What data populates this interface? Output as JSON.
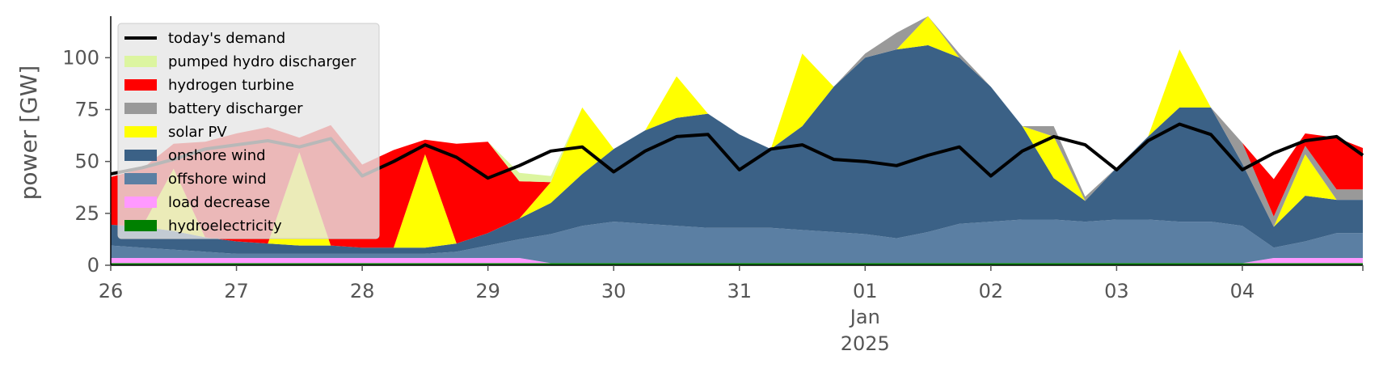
{
  "chart_data": {
    "type": "area",
    "ylabel": "power [GW]",
    "ylim": [
      0,
      120
    ],
    "xlim": [
      "2024-12-26T00:00",
      "2025-01-04T23:00"
    ],
    "yticks": [
      0,
      25,
      50,
      75,
      100
    ],
    "ytick_labels": [
      "0",
      "25",
      "50",
      "75",
      "100"
    ],
    "xtick_labels": [
      "26",
      "27",
      "28",
      "29",
      "30",
      "31",
      "01",
      "02",
      "03",
      "04"
    ],
    "xtick_sublabel": [
      "Jan",
      "2025"
    ],
    "legend_position": "upper-left",
    "legend": [
      "today's demand",
      "pumped hydro discharger",
      "hydrogen turbine",
      "battery discharger",
      "solar PV",
      "onshore wind",
      "offshore wind",
      "load decrease",
      "hydroelectricity"
    ],
    "x": [
      "2024-12-26T00:00",
      "2024-12-26T06:00",
      "2024-12-26T12:00",
      "2024-12-26T18:00",
      "2024-12-27T00:00",
      "2024-12-27T06:00",
      "2024-12-27T12:00",
      "2024-12-27T18:00",
      "2024-12-28T00:00",
      "2024-12-28T06:00",
      "2024-12-28T12:00",
      "2024-12-28T18:00",
      "2024-12-29T00:00",
      "2024-12-29T06:00",
      "2024-12-29T12:00",
      "2024-12-29T18:00",
      "2024-12-30T00:00",
      "2024-12-30T06:00",
      "2024-12-30T12:00",
      "2024-12-30T18:00",
      "2024-12-31T00:00",
      "2024-12-31T06:00",
      "2024-12-31T12:00",
      "2024-12-31T18:00",
      "2025-01-01T00:00",
      "2025-01-01T06:00",
      "2025-01-01T12:00",
      "2025-01-01T18:00",
      "2025-01-02T00:00",
      "2025-01-02T06:00",
      "2025-01-02T12:00",
      "2025-01-02T18:00",
      "2025-01-03T00:00",
      "2025-01-03T06:00",
      "2025-01-03T12:00",
      "2025-01-03T18:00",
      "2025-01-04T00:00",
      "2025-01-04T06:00",
      "2025-01-04T12:00",
      "2025-01-04T18:00",
      "2025-01-04T23:00"
    ],
    "series": [
      {
        "name": "hydroelectricity",
        "color": "#008000",
        "values": [
          1,
          1,
          1,
          1,
          1,
          1,
          1,
          1,
          1,
          1,
          1,
          1,
          1,
          1,
          1,
          1,
          1,
          1,
          1,
          1,
          1,
          1,
          1,
          1,
          1,
          1,
          1,
          1,
          1,
          1,
          1,
          1,
          1,
          1,
          1,
          1,
          1,
          1,
          1,
          1,
          1
        ]
      },
      {
        "name": "load decrease",
        "color": "#ff99ff",
        "values": [
          2.5,
          2.5,
          2.5,
          2.5,
          2.5,
          2.5,
          2.5,
          2.5,
          2.5,
          2.5,
          2.5,
          2.5,
          2.5,
          2.5,
          0,
          0,
          0,
          0,
          0,
          0,
          0,
          0,
          0,
          0,
          0,
          0,
          0,
          0,
          0,
          0,
          0,
          0,
          0,
          0,
          0,
          0,
          0,
          2.5,
          2.5,
          2.5,
          2.5
        ]
      },
      {
        "name": "offshore wind",
        "color": "#5b7fa3",
        "values": [
          6,
          5,
          4,
          3,
          2,
          2,
          2,
          2,
          2,
          2,
          2,
          3,
          6,
          9,
          14,
          18,
          20,
          19,
          18,
          17,
          17,
          17,
          16,
          15,
          14,
          12,
          15,
          19,
          20,
          21,
          21,
          20,
          21,
          21,
          20,
          20,
          18,
          5,
          8,
          12,
          12
        ]
      },
      {
        "name": "onshore wind",
        "color": "#3b6186",
        "values": [
          10,
          10,
          9,
          7,
          6,
          5,
          4,
          4,
          3,
          3,
          3,
          4,
          6,
          10,
          15,
          25,
          35,
          45,
          52,
          55,
          45,
          38,
          50,
          70,
          85,
          91,
          90,
          80,
          65,
          45,
          20,
          10,
          25,
          40,
          55,
          55,
          30,
          10,
          22,
          16,
          16
        ]
      },
      {
        "name": "solar PV",
        "color": "#ffff00",
        "values": [
          0,
          0,
          30,
          0,
          0,
          0,
          45,
          0,
          0,
          0,
          45,
          0,
          0,
          0,
          10,
          32,
          0,
          0,
          20,
          0,
          0,
          0,
          35,
          0,
          0,
          0,
          42,
          0,
          0,
          0,
          20,
          0,
          0,
          0,
          28,
          0,
          0,
          0,
          20,
          0,
          0
        ]
      },
      {
        "name": "battery discharger",
        "color": "#999999",
        "values": [
          0,
          0,
          0,
          0,
          0,
          0,
          0,
          0,
          0,
          0,
          0,
          0,
          0,
          0,
          0,
          0,
          0,
          0,
          0,
          0,
          0,
          0,
          0,
          0,
          2,
          8,
          10,
          2,
          0,
          0,
          5,
          2,
          0,
          0,
          0,
          0,
          10,
          5,
          4,
          5,
          5
        ]
      },
      {
        "name": "hydrogen turbine",
        "color": "#ff0000",
        "values": [
          23,
          28,
          12,
          46,
          52,
          56,
          7,
          58,
          40,
          47,
          7,
          48,
          44,
          18,
          0,
          0,
          0,
          0,
          0,
          0,
          0,
          0,
          0,
          0,
          0,
          0,
          0,
          0,
          0,
          0,
          0,
          0,
          0,
          0,
          0,
          0,
          0,
          18,
          6,
          25,
          20
        ]
      },
      {
        "name": "pumped hydro discharger",
        "color": "#dcf5a0",
        "values": [
          0,
          0,
          0,
          0,
          0,
          0,
          0,
          0,
          0,
          0,
          0,
          0,
          0,
          4,
          3,
          0,
          0,
          0,
          0,
          0,
          0,
          0,
          0,
          0,
          0,
          0,
          0,
          0,
          0,
          0,
          0,
          0,
          0,
          0,
          0,
          0,
          0,
          0,
          0,
          0,
          0
        ]
      }
    ],
    "demand": {
      "name": "today's demand",
      "color": "#000000",
      "values": [
        44,
        47,
        51,
        56,
        58,
        60,
        57,
        61,
        43,
        50,
        58,
        52,
        42,
        48,
        55,
        57,
        45,
        55,
        62,
        63,
        46,
        56,
        58,
        51,
        50,
        48,
        53,
        57,
        43,
        55,
        62,
        58,
        46,
        60,
        68,
        63,
        46,
        54,
        60,
        62,
        53
      ]
    }
  }
}
